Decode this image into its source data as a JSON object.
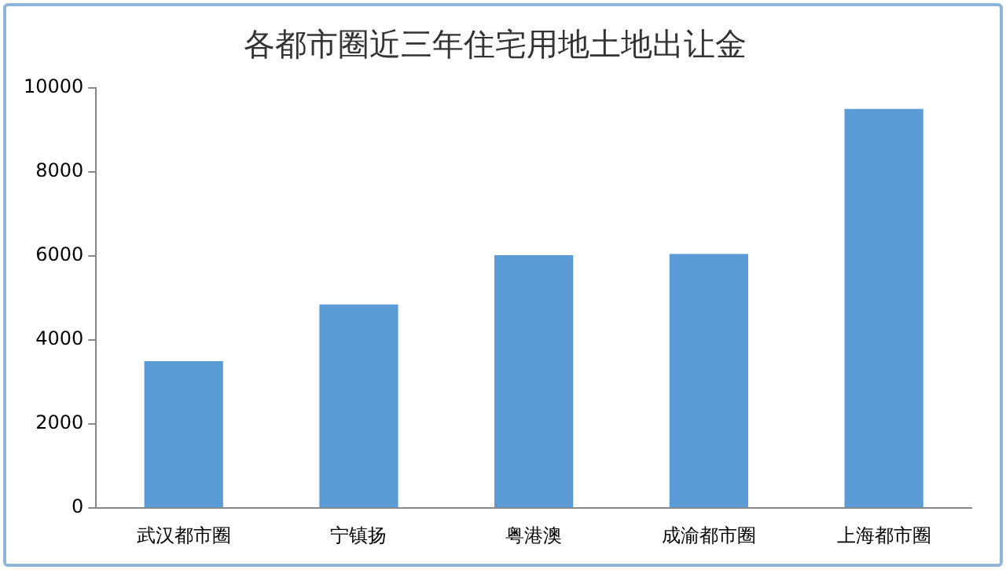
{
  "chart_data": {
    "type": "bar",
    "title": "各都市圈近三年住宅用地土地出让金",
    "categories": [
      "武汉都市圈",
      "宁镇扬",
      "粤港澳",
      "成渝都市圈",
      "上海都市圈"
    ],
    "values": [
      3500,
      4850,
      6020,
      6050,
      9500
    ],
    "color": "#5b9bd5",
    "ylim": [
      0,
      10000
    ],
    "yticks": [
      0,
      2000,
      4000,
      6000,
      8000,
      10000
    ],
    "grid": false,
    "legend": false
  }
}
